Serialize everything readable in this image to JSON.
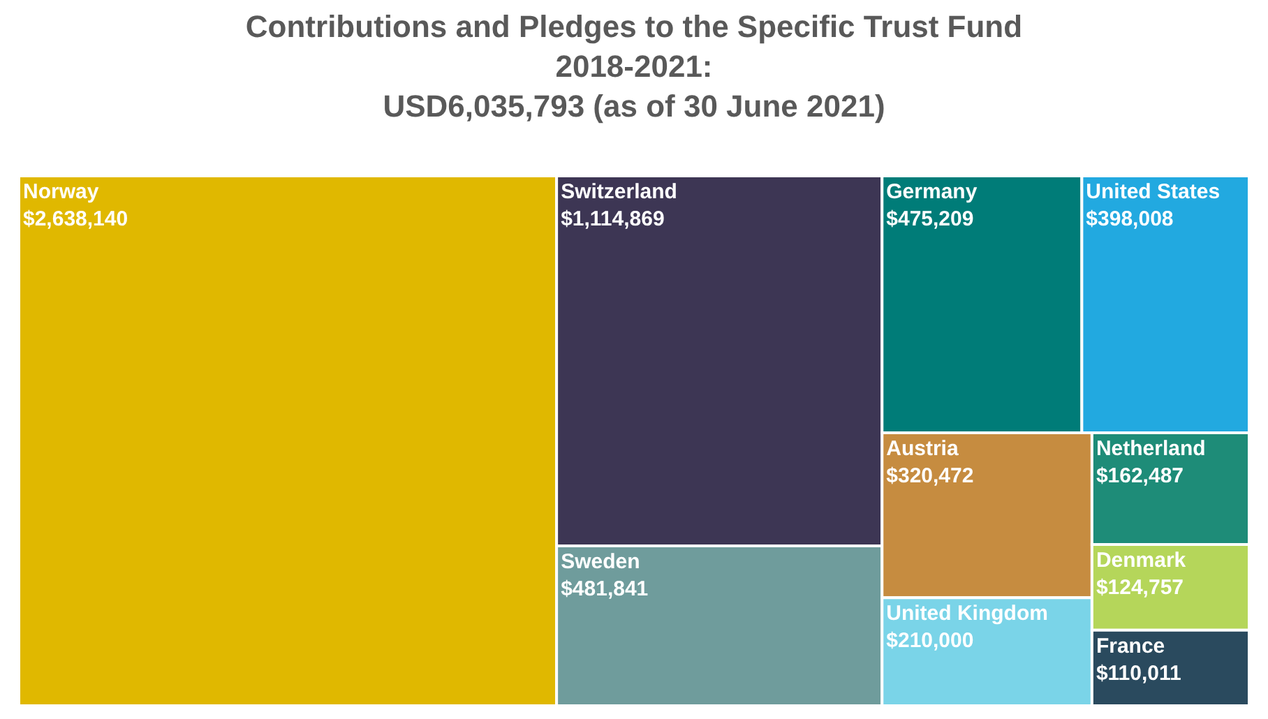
{
  "chart_data": {
    "type": "other",
    "title": "Contributions and Pledges to the Specific Trust Fund\n2018-2021:\nUSD6,035,793 (as of 30 June 2021)",
    "categories": [
      "Norway",
      "Switzerland",
      "Sweden",
      "Germany",
      "United States",
      "Austria",
      "United Kingdom",
      "Netherland",
      "Denmark",
      "France"
    ],
    "values": [
      2638140,
      1114869,
      481841,
      475209,
      398008,
      320472,
      210000,
      162487,
      124757,
      110011
    ],
    "value_labels": [
      "$2,638,140",
      "$1,114,869",
      "$481,841",
      "$475,209",
      "$398,008",
      "$320,472",
      "$210,000",
      "$162,487",
      "$124,757",
      "$110,011"
    ],
    "colors": [
      "#e0b800",
      "#3d3654",
      "#6f9c9c",
      "#007c78",
      "#22a9e0",
      "#c68c40",
      "#7ad4e8",
      "#1e8c78",
      "#b5d65a",
      "#2a4a5e"
    ]
  }
}
